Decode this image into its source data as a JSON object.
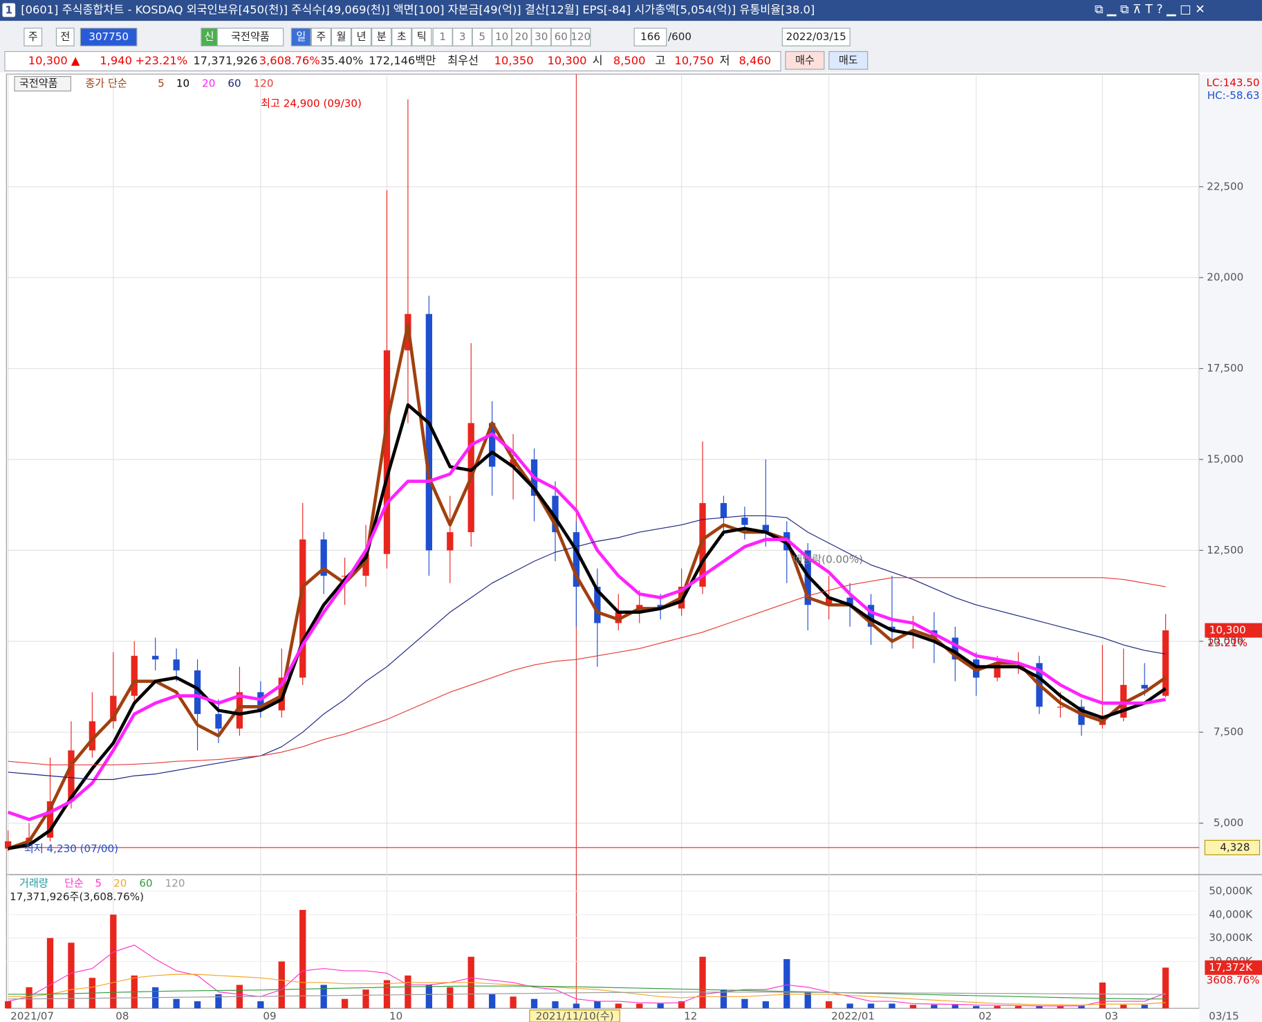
{
  "window": {
    "badge": "1",
    "title": "[0601] 주식종합차트 - KOSDAQ 외국인보유[450(천)] 주식수[49,069(천)] 액면[100] 자본금[49(억)] 결산[12월] EPS[-84] 시가총액[5,054(억)] 유통비율[38.0]"
  },
  "toolbar": {
    "mode1": "주",
    "mode2": "전",
    "code": "307750",
    "tag": "신",
    "stock_name": "국전약품",
    "periods": [
      "일",
      "주",
      "월",
      "년",
      "분",
      "초",
      "틱"
    ],
    "intervals": [
      "1",
      "3",
      "5",
      "10",
      "20",
      "30",
      "60",
      "120"
    ],
    "count": "166",
    "max_count": "/600",
    "date": "2022/03/15"
  },
  "quote": {
    "price": "10,300 ▲",
    "change": "1,940",
    "change_pct": "+23.21%",
    "volume": "17,371,926",
    "volume_ratio": "3,608.76%",
    "turnover": "35.40%",
    "amount": "172,146백만",
    "best_label": "최우선",
    "ask": "10,350",
    "bid": "10,300",
    "open_label": "시",
    "open": "8,500",
    "high_label": "고",
    "high": "10,750",
    "low_label": "저",
    "low": "8,460",
    "buy": "매수",
    "sell": "매도"
  },
  "chart_data": [
    {
      "type": "candlestick",
      "name": "국전약품",
      "legend_prefix": "종가 단순",
      "categories": [
        "2021/07",
        null,
        null,
        null,
        null,
        "08",
        null,
        null,
        null,
        null,
        null,
        null,
        "09",
        null,
        null,
        null,
        null,
        null,
        "10",
        null,
        null,
        null,
        null,
        null,
        null,
        null,
        null,
        "2021/11/10(수)",
        null,
        null,
        null,
        null,
        "12",
        null,
        null,
        null,
        null,
        null,
        null,
        "2022/01",
        null,
        null,
        null,
        null,
        null,
        null,
        "02",
        null,
        null,
        null,
        null,
        null,
        "03",
        null,
        null,
        null
      ],
      "end_label": "03/15",
      "open": [
        4300,
        4500,
        4600,
        5600,
        7000,
        7800,
        8500,
        9600,
        9500,
        9200,
        8000,
        7600,
        8600,
        8100,
        9000,
        12800,
        11800,
        11800,
        12400,
        18000,
        19000,
        12500,
        13000,
        16000,
        14800,
        15000,
        14000,
        13000,
        11500,
        10500,
        10800,
        11000,
        10900,
        11500,
        13800,
        13400,
        13200,
        13000,
        12500,
        11000,
        11200,
        11000,
        10400,
        10300,
        10300,
        10100,
        9500,
        9000,
        9400,
        9400,
        8200,
        8200,
        7700,
        7900,
        8800,
        8500
      ],
      "high": [
        4800,
        5000,
        6800,
        7800,
        8600,
        9700,
        10000,
        10100,
        9800,
        9500,
        8400,
        9300,
        8900,
        9800,
        13800,
        13000,
        12300,
        13200,
        22400,
        24900,
        19500,
        14000,
        18200,
        16600,
        15700,
        15300,
        14400,
        13300,
        12000,
        11300,
        11400,
        11300,
        12000,
        15500,
        14000,
        13700,
        15000,
        13300,
        12700,
        11800,
        11600,
        11300,
        11800,
        10700,
        10800,
        10400,
        9700,
        9600,
        9700,
        9600,
        8600,
        8400,
        9900,
        9800,
        9400,
        10750
      ],
      "low": [
        4230,
        4400,
        4500,
        5400,
        6800,
        7600,
        8300,
        9200,
        8900,
        7000,
        7200,
        7400,
        7900,
        7900,
        8800,
        11300,
        11000,
        11500,
        12000,
        16000,
        11800,
        11600,
        12600,
        14000,
        13900,
        13300,
        12200,
        10400,
        9300,
        10300,
        10500,
        10600,
        10700,
        11300,
        12900,
        12800,
        12600,
        11600,
        10300,
        10600,
        10400,
        9900,
        9800,
        9800,
        9400,
        8900,
        8500,
        8900,
        9100,
        8000,
        7900,
        7400,
        7600,
        7800,
        8500,
        8460
      ],
      "close": [
        4500,
        4600,
        5600,
        7000,
        7800,
        8500,
        9600,
        9500,
        9200,
        8000,
        7600,
        8600,
        8100,
        9000,
        12800,
        11800,
        11800,
        12400,
        18000,
        19000,
        12500,
        13000,
        16000,
        14800,
        15000,
        14000,
        13000,
        11500,
        10500,
        10800,
        11000,
        10900,
        11500,
        13800,
        13400,
        13200,
        13000,
        12500,
        11000,
        11200,
        11000,
        10400,
        10300,
        10300,
        10100,
        9500,
        9000,
        9400,
        9400,
        8200,
        8200,
        7700,
        7900,
        8800,
        8700,
        10300
      ],
      "up_color": "#e8261e",
      "down_color": "#1f4fcf",
      "series": [
        {
          "name": "5",
          "color": "#a0400f",
          "values": [
            4300,
            4500,
            5400,
            6600,
            7300,
            7900,
            8900,
            8900,
            8600,
            7700,
            7400,
            8200,
            8200,
            8500,
            11500,
            12000,
            11600,
            12200,
            16000,
            18700,
            14500,
            13200,
            14500,
            16000,
            15000,
            14200,
            13200,
            11800,
            10800,
            10600,
            10900,
            10900,
            11200,
            12800,
            13200,
            13000,
            13000,
            12800,
            11200,
            11000,
            11000,
            10500,
            10000,
            10300,
            10100,
            9600,
            9200,
            9400,
            9400,
            8800,
            8300,
            8000,
            7800,
            8300,
            8600,
            9000
          ]
        },
        {
          "name": "10",
          "color": "#000000",
          "values": [
            4300,
            4400,
            4800,
            5700,
            6500,
            7200,
            8300,
            8900,
            9000,
            8700,
            8100,
            8000,
            8100,
            8400,
            10000,
            11000,
            11700,
            12300,
            14500,
            16500,
            16000,
            14800,
            14700,
            15200,
            14800,
            14200,
            13400,
            12500,
            11400,
            10800,
            10800,
            10900,
            11100,
            12200,
            13000,
            13100,
            13000,
            12700,
            11800,
            11200,
            11000,
            10600,
            10300,
            10200,
            10000,
            9700,
            9300,
            9300,
            9300,
            9000,
            8500,
            8100,
            7900,
            8100,
            8300,
            8700
          ]
        },
        {
          "name": "20",
          "color": "#ff22ff",
          "values": [
            5300,
            5100,
            5300,
            5600,
            6100,
            7000,
            8000,
            8300,
            8500,
            8500,
            8300,
            8500,
            8400,
            8800,
            9900,
            10800,
            11600,
            12500,
            13800,
            14400,
            14400,
            14600,
            15400,
            15700,
            15200,
            14500,
            14200,
            13600,
            12500,
            11800,
            11300,
            11200,
            11400,
            11800,
            12200,
            12600,
            12800,
            12800,
            12300,
            11900,
            11300,
            10800,
            10600,
            10500,
            10200,
            9900,
            9600,
            9500,
            9400,
            9200,
            8800,
            8500,
            8300,
            8300,
            8300,
            8400
          ]
        },
        {
          "name": "60",
          "color": "#1a237e",
          "values": [
            6400,
            6350,
            6300,
            6250,
            6200,
            6200,
            6300,
            6350,
            6450,
            6550,
            6650,
            6750,
            6850,
            7100,
            7500,
            8000,
            8400,
            8900,
            9300,
            9800,
            10300,
            10800,
            11200,
            11600,
            11900,
            12200,
            12450,
            12600,
            12750,
            12850,
            13000,
            13100,
            13200,
            13350,
            13400,
            13450,
            13450,
            13400,
            13000,
            12700,
            12400,
            12100,
            11900,
            11700,
            11450,
            11200,
            11000,
            10850,
            10700,
            10550,
            10400,
            10250,
            10100,
            9900,
            9750,
            9650
          ]
        },
        {
          "name": "120",
          "color": "#e53935",
          "values": [
            6700,
            6650,
            6600,
            6600,
            6600,
            6600,
            6620,
            6650,
            6700,
            6720,
            6750,
            6800,
            6850,
            6950,
            7100,
            7300,
            7450,
            7650,
            7850,
            8100,
            8350,
            8600,
            8800,
            9000,
            9200,
            9350,
            9450,
            9500,
            9600,
            9700,
            9800,
            9950,
            10100,
            10250,
            10450,
            10650,
            10850,
            11050,
            11250,
            11400,
            11550,
            11650,
            11750,
            11750,
            11750,
            11750,
            11750,
            11750,
            11750,
            11750,
            11750,
            11750,
            11750,
            11700,
            11600,
            11500
          ]
        }
      ],
      "ylim": [
        3650,
        25530
      ],
      "yticks": [
        {
          "value": 5000,
          "label": "5,000"
        },
        {
          "value": 7500,
          "label": "7,500"
        },
        {
          "value": 10000,
          "label": "10,000"
        },
        {
          "value": 12500,
          "label": "12,500"
        },
        {
          "value": 15000,
          "label": "15,000"
        },
        {
          "value": 17500,
          "label": "17,500"
        },
        {
          "value": 20000,
          "label": "20,000"
        },
        {
          "value": 22500,
          "label": "22,500"
        }
      ],
      "grid": true,
      "annotations": [
        "최고 24,900 (09/30)",
        "최저 4,230 (07/00)",
        "배당락(0.00%)"
      ],
      "lc": "LC:143.50",
      "hc": "HC:-58.63",
      "last_price": {
        "value": 10300,
        "label": "10,300"
      },
      "last_change": "23.21%",
      "ref_line": {
        "value": 4328,
        "label": "4,328"
      }
    },
    {
      "type": "bar",
      "title": "거래량",
      "legend_prefix": "단순",
      "info": "17,371,926주(3,608.76%)",
      "values": [
        3000,
        9000,
        30000,
        28000,
        13000,
        40000,
        14000,
        9000,
        4000,
        3000,
        6000,
        10000,
        3000,
        20000,
        42000,
        10000,
        4000,
        8000,
        12000,
        14000,
        10000,
        9000,
        22000,
        6000,
        5000,
        4000,
        3000,
        2000,
        3000,
        2000,
        2000,
        2000,
        3000,
        22000,
        8000,
        4000,
        3000,
        21000,
        7000,
        3000,
        2000,
        2000,
        2000,
        1500,
        1500,
        1500,
        1000,
        1000,
        1000,
        1000,
        1000,
        1000,
        11000,
        1500,
        1500,
        17372
      ],
      "series": [
        {
          "name": "5",
          "color": "#ff33cc",
          "values": [
            3000,
            5000,
            10000,
            15000,
            17000,
            24000,
            27000,
            21000,
            16000,
            14000,
            7000,
            6000,
            5000,
            8000,
            16000,
            17000,
            16000,
            16000,
            15000,
            10000,
            10000,
            11000,
            13000,
            12000,
            11000,
            9000,
            8000,
            4000,
            3000,
            3000,
            2400,
            2200,
            2400,
            6000,
            7000,
            8000,
            8000,
            10000,
            9000,
            7000,
            5000,
            3000,
            3000,
            2000,
            1800,
            1700,
            1400,
            1300,
            1200,
            1000,
            1000,
            1000,
            3000,
            3000,
            3000,
            6500
          ]
        },
        {
          "name": "20",
          "color": "#f5a623",
          "values": [
            5000,
            5000,
            6000,
            8000,
            9000,
            11000,
            13000,
            14000,
            14500,
            14500,
            14000,
            13500,
            13000,
            12000,
            11000,
            11000,
            10500,
            10500,
            10500,
            11000,
            11000,
            11000,
            11000,
            10500,
            10000,
            9500,
            9000,
            8500,
            8000,
            7000,
            6000,
            5000,
            4500,
            5000,
            5000,
            5000,
            5500,
            6000,
            6000,
            6000,
            5500,
            5000,
            4500,
            4000,
            3500,
            3000,
            2500,
            2000,
            1800,
            1600,
            1500,
            1400,
            1800,
            1800,
            1800,
            2500
          ]
        },
        {
          "name": "60",
          "color": "#2e9b3a",
          "values": [
            6000,
            6000,
            6100,
            6300,
            6500,
            6800,
            7000,
            7200,
            7400,
            7500,
            7600,
            7700,
            7800,
            8000,
            8200,
            8400,
            8600,
            8800,
            9000,
            9200,
            9300,
            9400,
            9500,
            9500,
            9500,
            9400,
            9300,
            9200,
            9000,
            8800,
            8600,
            8400,
            8200,
            8000,
            7800,
            7600,
            7400,
            7200,
            7000,
            6800,
            6600,
            6400,
            6200,
            6000,
            5800,
            5600,
            5400,
            5200,
            5000,
            4800,
            4600,
            4400,
            4200,
            4100,
            4000,
            4000
          ]
        },
        {
          "name": "120",
          "color": "#999999",
          "values": [
            4000,
            4000,
            4100,
            4200,
            4300,
            4400,
            4500,
            4600,
            4700,
            4800,
            4900,
            5000,
            5100,
            5200,
            5300,
            5400,
            5500,
            5600,
            5700,
            5800,
            5900,
            6000,
            6100,
            6200,
            6300,
            6400,
            6500,
            6600,
            6700,
            6750,
            6800,
            6850,
            6900,
            6900,
            6900,
            6900,
            6900,
            6850,
            6800,
            6750,
            6700,
            6650,
            6600,
            6550,
            6500,
            6450,
            6400,
            6350,
            6300,
            6250,
            6200,
            6150,
            6100,
            6050,
            6000,
            6000
          ]
        }
      ],
      "ylim": [
        0,
        55000
      ],
      "yticks": [
        {
          "value": 20000,
          "label": "20,000K"
        },
        {
          "value": 30000,
          "label": "30,000K"
        },
        {
          "value": 40000,
          "label": "40,000K"
        },
        {
          "value": 50000,
          "label": "50,000K"
        }
      ],
      "last_value": {
        "value": 17372,
        "label": "17,372K"
      },
      "last_ratio": "3608.76%"
    }
  ]
}
